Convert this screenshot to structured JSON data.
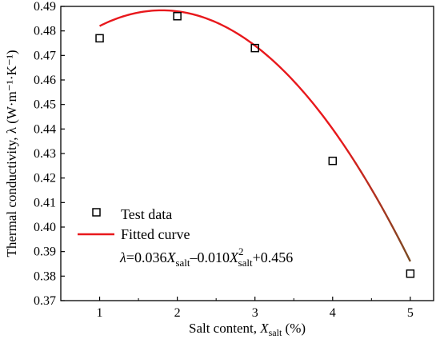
{
  "chart_data": {
    "type": "scatter",
    "xlabel_main": "Salt content, ",
    "xlabel_var": "X",
    "xlabel_sub": "salt",
    "xlabel_unit": " (%)",
    "ylabel": "Thermal conductivity, λ (W·m⁻¹·K⁻¹)",
    "xlim": [
      0.5,
      5.3
    ],
    "ylim": [
      0.37,
      0.49
    ],
    "x_ticks": [
      "1",
      "2",
      "3",
      "4",
      "5"
    ],
    "y_ticks": [
      "0.37",
      "0.38",
      "0.39",
      "0.40",
      "0.41",
      "0.42",
      "0.43",
      "0.44",
      "0.45",
      "0.46",
      "0.47",
      "0.48",
      "0.49"
    ],
    "series": [
      {
        "name": "Test data",
        "marker": "open-square",
        "color": "#000000",
        "x": [
          1,
          2,
          3,
          4,
          5
        ],
        "y": [
          0.477,
          0.486,
          0.473,
          0.427,
          0.381
        ]
      },
      {
        "name": "Fitted curve",
        "line": true,
        "color": "#e8181c",
        "color_end": "#7a4a22",
        "x_range": [
          1,
          5
        ],
        "coefficients": {
          "a": -0.01,
          "b": 0.036,
          "c": 0.456
        }
      }
    ],
    "formula": {
      "lambda": "λ",
      "eq": "=0.036",
      "x1": "X",
      "s1": "salt",
      "minus": "–0.010",
      "x2": "X",
      "sup2": "2",
      "s2": "salt",
      "tail": "+0.456"
    },
    "grid": false,
    "legend_position": "bottom-left"
  }
}
